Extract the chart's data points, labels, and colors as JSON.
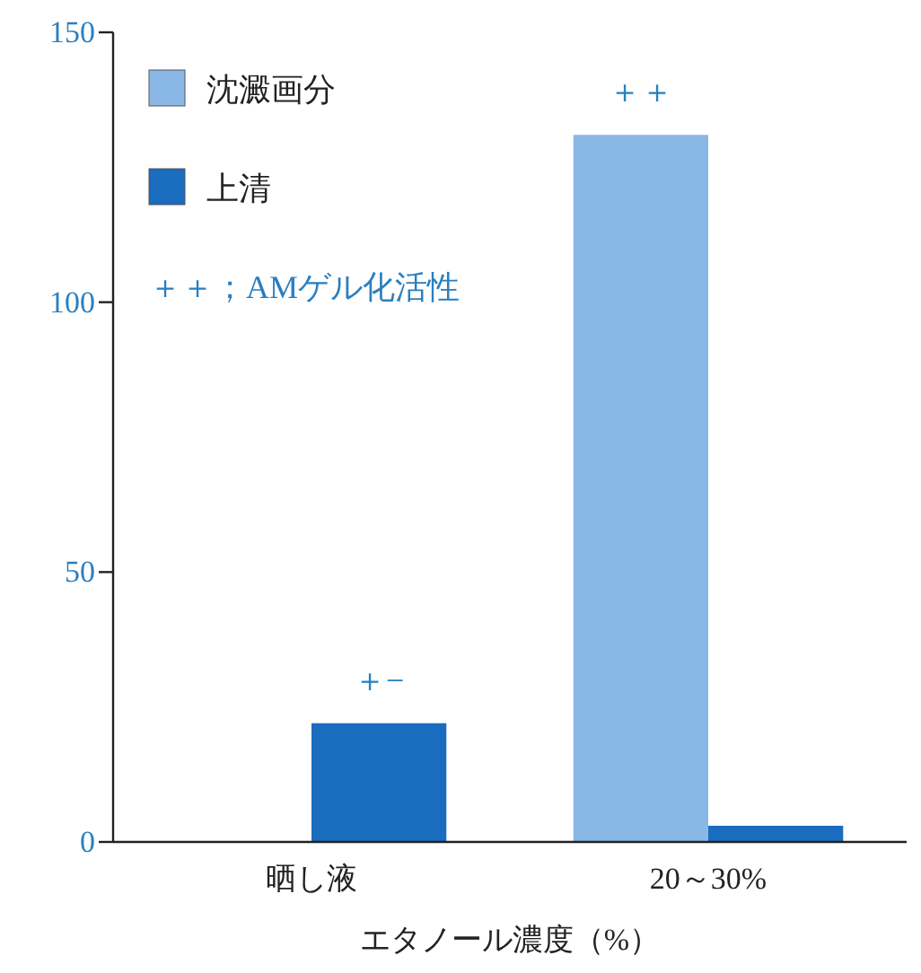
{
  "chart_data": {
    "type": "bar",
    "xlabel": "エタノール濃度（%）",
    "categories": [
      "晒し液",
      "20～30%"
    ],
    "series": [
      {
        "name": "沈澱画分",
        "color": "#8ab8e6",
        "values": [
          null,
          131
        ]
      },
      {
        "name": "上清",
        "color": "#1a6cbf",
        "values": [
          22,
          3
        ]
      }
    ],
    "ylim": [
      0,
      150
    ],
    "yticks": [
      0,
      50,
      100,
      150
    ],
    "legend": "top left",
    "grid": false,
    "annotations": [
      {
        "text": "＋−",
        "x": "晒し液",
        "y": 22
      },
      {
        "text": "＋＋",
        "x": "20～30%",
        "y": 131
      },
      "＋＋；AMゲル化活性"
    ]
  }
}
